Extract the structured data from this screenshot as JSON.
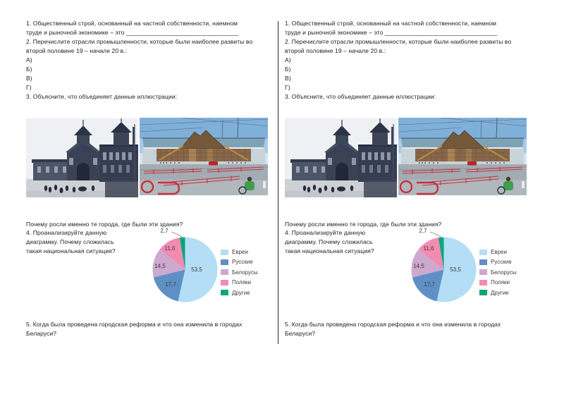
{
  "worksheet": {
    "lines": [
      "1. Общественный строй, основанный на частной собственности, наемном",
      "труде и рыночной экономике – это _________________________________",
      "2. Перечислите отрасли промышленности, которые были наиболее развиты во",
      "второй половине 19 –  начале 20 в.:",
      "А)",
      "Б)",
      "В)",
      "Г)",
      "3. Объясните, что объединяет данные иллюстрации:"
    ],
    "q3_follow_up": "Почему росли именно те города, где были эти здания?",
    "q4_lines": [
      "4. Проанализируйте данную",
      "диаграмму. Почему сложилась",
      "такая национальная ситуация?"
    ],
    "q5_lines": [
      "5. Когда была проведена городская реформа и что она изменила в городах",
      "Беларуси?"
    ]
  },
  "chart_data": {
    "type": "pie",
    "categories": [
      "Евреи",
      "Русские",
      "Белорусы",
      "Поляки",
      "Другие"
    ],
    "values": [
      53.5,
      17.7,
      14.5,
      11.6,
      2.7
    ],
    "labels_display": [
      "53,5",
      "17,7",
      "14,5",
      "11,6",
      "2,7"
    ],
    "colors": [
      "#b3def5",
      "#5e90c5",
      "#cda8cf",
      "#f28bb2",
      "#0aa77b"
    ],
    "units": "percent",
    "legend_position": "right",
    "start_angle_deg": -90,
    "direction": "clockwise"
  }
}
